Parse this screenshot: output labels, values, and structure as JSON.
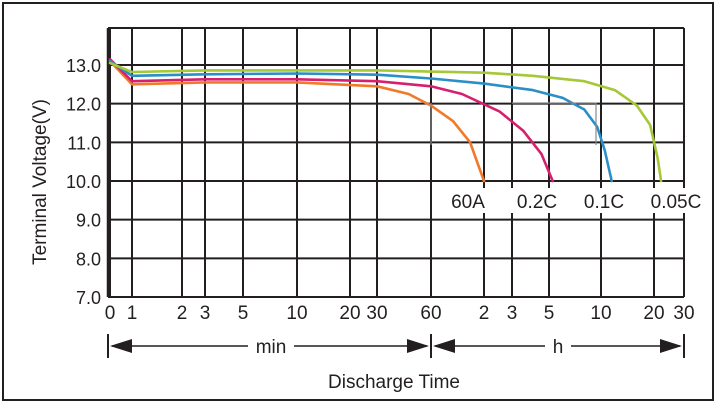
{
  "chart_data": {
    "type": "line",
    "ylabel": "Terminal Voltage(V)",
    "xlabel": "Discharge Time",
    "y_ticks": [
      "7.0",
      "8.0",
      "9.0",
      "10.0",
      "11.0",
      "12.0",
      "13.0"
    ],
    "y_range": [
      7.0,
      13.0
    ],
    "x_ticks": [
      "0",
      "1",
      "2",
      "3",
      "5",
      "10",
      "20",
      "30",
      "60",
      "2",
      "3",
      "5",
      "10",
      "20",
      "30"
    ],
    "x_scale": "log-time; 0 min mapped near 0.8 min",
    "x_range_minutes": [
      0.8,
      1800
    ],
    "range_markers": [
      {
        "label": "min",
        "from_minutes": 0.8,
        "to_minutes": 60
      },
      {
        "label": "h",
        "from_minutes": 60,
        "to_minutes": 1800
      }
    ],
    "grid": true,
    "legend": "labels at curve ends",
    "series": [
      {
        "name": "60A",
        "color": "#f07a2a",
        "points": [
          [
            0.8,
            13.1
          ],
          [
            1.0,
            12.5
          ],
          [
            3,
            12.55
          ],
          [
            10,
            12.55
          ],
          [
            30,
            12.45
          ],
          [
            45,
            12.25
          ],
          [
            60,
            11.95
          ],
          [
            80,
            11.55
          ],
          [
            100,
            11.0
          ],
          [
            120,
            10.0
          ]
        ]
      },
      {
        "name": "0.2C",
        "color": "#d6206e",
        "points": [
          [
            0.8,
            13.15
          ],
          [
            1.0,
            12.58
          ],
          [
            3,
            12.63
          ],
          [
            10,
            12.63
          ],
          [
            30,
            12.58
          ],
          [
            60,
            12.45
          ],
          [
            90,
            12.25
          ],
          [
            150,
            11.8
          ],
          [
            210,
            11.3
          ],
          [
            270,
            10.7
          ],
          [
            315,
            10.0
          ]
        ]
      },
      {
        "name": "0.1C",
        "color": "#2a8fc6",
        "points": [
          [
            0.8,
            13.1
          ],
          [
            1.0,
            12.72
          ],
          [
            3,
            12.76
          ],
          [
            10,
            12.78
          ],
          [
            30,
            12.75
          ],
          [
            60,
            12.65
          ],
          [
            120,
            12.52
          ],
          [
            240,
            12.35
          ],
          [
            360,
            12.15
          ],
          [
            480,
            11.85
          ],
          [
            570,
            11.4
          ],
          [
            630,
            10.8
          ],
          [
            690,
            10.0
          ]
        ]
      },
      {
        "name": "0.05C",
        "color": "#a5c837",
        "points": [
          [
            0.8,
            13.05
          ],
          [
            1.0,
            12.82
          ],
          [
            3,
            12.86
          ],
          [
            10,
            12.86
          ],
          [
            30,
            12.86
          ],
          [
            60,
            12.83
          ],
          [
            120,
            12.8
          ],
          [
            240,
            12.72
          ],
          [
            480,
            12.58
          ],
          [
            720,
            12.35
          ],
          [
            960,
            11.95
          ],
          [
            1140,
            11.45
          ],
          [
            1260,
            10.6
          ],
          [
            1320,
            10.0
          ]
        ]
      }
    ]
  }
}
